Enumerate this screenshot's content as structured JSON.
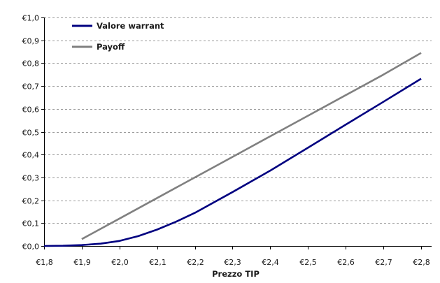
{
  "chart_data": {
    "type": "line",
    "title": "",
    "xlabel": "Prezzo TIP",
    "ylabel": "",
    "xlim": [
      1.8,
      2.8
    ],
    "ylim": [
      0.0,
      1.0
    ],
    "x_ticks": [
      1.8,
      1.9,
      2.0,
      2.1,
      2.2,
      2.3,
      2.4,
      2.5,
      2.6,
      2.7,
      2.8
    ],
    "x_tick_labels": [
      "€1,8",
      "€1,9",
      "€2,0",
      "€2,1",
      "€2,2",
      "€2,3",
      "€2,4",
      "€2,5",
      "€2,6",
      "€2,7",
      "€2,8"
    ],
    "y_ticks": [
      0.0,
      0.1,
      0.2,
      0.3,
      0.4,
      0.5,
      0.6,
      0.7,
      0.8,
      0.9,
      1.0
    ],
    "y_tick_labels": [
      "€0,0",
      "€0,1",
      "€0,2",
      "€0,3",
      "€0,4",
      "€0,5",
      "€0,6",
      "€0,7",
      "€0,8",
      "€0,9",
      "€1,0"
    ],
    "grid": "horizontal-dashed",
    "legend_position": "top-left",
    "series": [
      {
        "name": "Valore warrant",
        "color": "#000080",
        "x": [
          1.8,
          1.85,
          1.9,
          1.95,
          2.0,
          2.05,
          2.1,
          2.15,
          2.2,
          2.3,
          2.4,
          2.5,
          2.6,
          2.7,
          2.8
        ],
        "y": [
          0.0,
          0.001,
          0.004,
          0.01,
          0.022,
          0.043,
          0.072,
          0.106,
          0.145,
          0.236,
          0.33,
          0.43,
          0.531,
          0.631,
          0.732
        ]
      },
      {
        "name": "Payoff",
        "color": "#808080",
        "x": [
          1.9,
          2.0,
          2.1,
          2.2,
          2.3,
          2.4,
          2.5,
          2.6,
          2.7,
          2.8
        ],
        "y": [
          0.03,
          0.12,
          0.21,
          0.3,
          0.39,
          0.48,
          0.57,
          0.66,
          0.75,
          0.845
        ]
      }
    ]
  }
}
